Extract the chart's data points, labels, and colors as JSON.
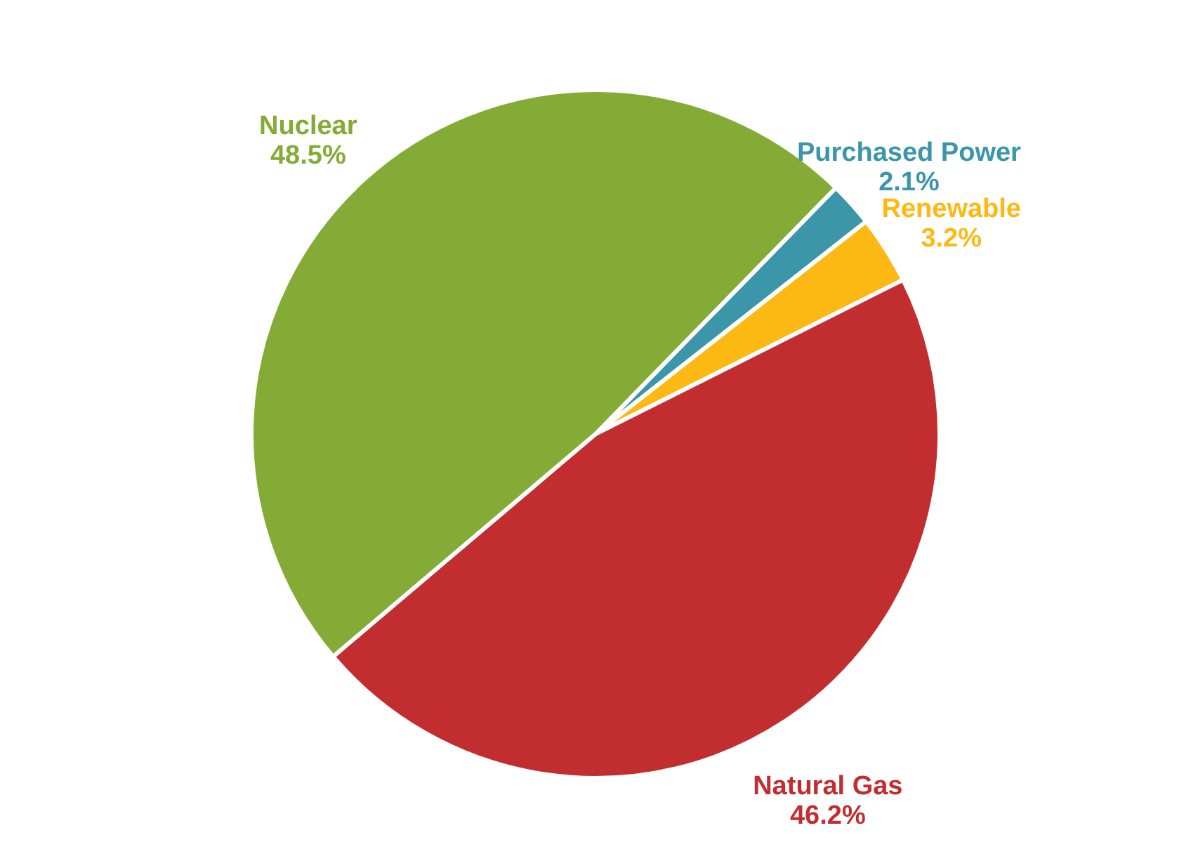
{
  "chart_data": {
    "type": "pie",
    "categories": [
      "Purchased Power",
      "Renewable",
      "Natural Gas",
      "Nuclear"
    ],
    "values": [
      2.1,
      3.2,
      46.2,
      48.5
    ],
    "colors": [
      "#3a96a8",
      "#fdb913",
      "#c22e30",
      "#84ab35"
    ],
    "value_labels": [
      "2.1%",
      "3.2%",
      "46.2%",
      "48.5%"
    ]
  }
}
